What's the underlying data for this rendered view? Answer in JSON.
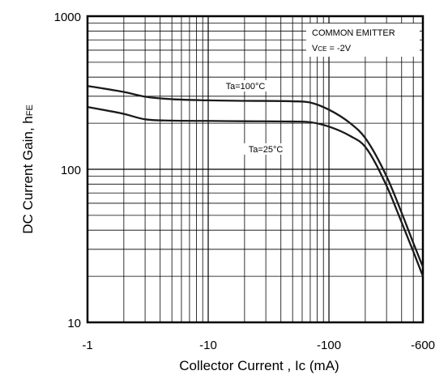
{
  "chart_data": {
    "type": "line",
    "title": "",
    "xlabel": "Collector Current , Ic (mA)",
    "ylabel_main": "DC Current Gain, h",
    "ylabel_sub": "FE",
    "x_scale": "log",
    "y_scale": "log",
    "xlim": [
      -1,
      -600
    ],
    "ylim": [
      10,
      1000
    ],
    "x_ticks": [
      -1,
      -10,
      -100,
      -600
    ],
    "x_tick_labels": [
      "-1",
      "-10",
      "-100",
      "-600"
    ],
    "y_ticks": [
      10,
      100,
      1000
    ],
    "y_tick_labels": [
      "10",
      "100",
      "1000"
    ],
    "grid": true,
    "legend": {
      "line1": "COMMON EMITTER",
      "line2_prefix": "V",
      "line2_sub": "CE",
      "line2_suffix": " = -2V",
      "placement": "top-right"
    },
    "series": [
      {
        "name": "Ta=100°C",
        "x": [
          -1,
          -2,
          -3,
          -5,
          -10,
          -20,
          -50,
          -70,
          -100,
          -150,
          -200,
          -300,
          -400,
          -500,
          -600
        ],
        "y": [
          350,
          320,
          298,
          287,
          282,
          280,
          278,
          273,
          245,
          200,
          160,
          90,
          52,
          33,
          23
        ]
      },
      {
        "name": "Ta=25°C",
        "x": [
          -1,
          -2,
          -3,
          -5,
          -10,
          -20,
          -50,
          -70,
          -100,
          -150,
          -200,
          -300,
          -400,
          -500,
          -600
        ],
        "y": [
          255,
          230,
          212,
          208,
          207,
          206,
          205,
          203,
          190,
          165,
          140,
          78,
          45,
          29,
          20
        ]
      }
    ],
    "labels": {
      "ta100": "Ta=100°C",
      "ta25": "Ta=25°C"
    }
  }
}
